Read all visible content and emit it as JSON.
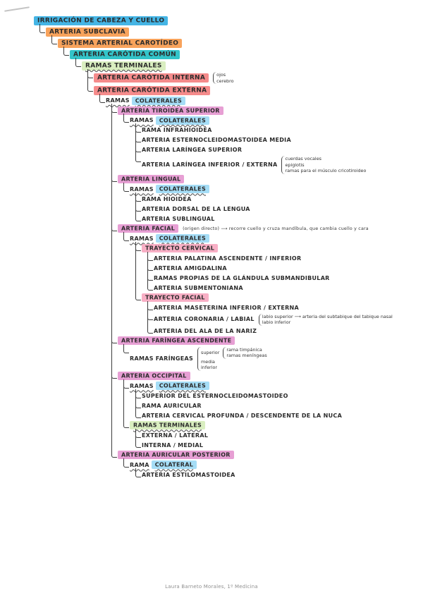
{
  "page": {
    "footer": "Laura Barneto Morales, 1º Medicina"
  },
  "palette": {
    "blue": "#45b5e5",
    "orange": "#f8a35c",
    "teal": "#33c4c9",
    "green": "#d9eec0",
    "red": "#f58b8b",
    "pink": "#e79fd4",
    "lightblue": "#a5ddf6",
    "lightpink": "#f8afc5"
  },
  "tree": {
    "label": "IRRIGACIÓN DE CABEZA Y CUELLO",
    "hl": "blue",
    "lg": true,
    "children": [
      {
        "label": "ARTERIA SUBCLAVIA",
        "hl": "orange",
        "lg": true,
        "children": [
          {
            "label": "SISTEMA ARTERIAL CAROTÍDEO",
            "hl": "orange",
            "lg": true,
            "children": [
              {
                "label": "ARTERIA CARÓTIDA COMÚN",
                "hl": "teal",
                "lg": true,
                "children": [
                  {
                    "label": "RAMAS TERMINALES",
                    "hl": "green",
                    "wavy": true,
                    "lg": true,
                    "children": [
                      {
                        "label": "ARTERIA CARÓTIDA INTERNA",
                        "hl": "red",
                        "lg": true,
                        "fork": [
                          {
                            "text": "ojos"
                          },
                          {
                            "text": "cerebro"
                          }
                        ]
                      },
                      {
                        "label": "ARTERIA CARÓTIDA EXTERNA",
                        "hl": "red",
                        "lg": true,
                        "children": [
                          {
                            "pre": "RAMAS",
                            "label": "COLATERALES",
                            "hl": "lightblue",
                            "wavy": true,
                            "children": [
                              {
                                "label": "ARTERIA TIROIDEA SUPERIOR",
                                "hl": "pink",
                                "children": [
                                  {
                                    "pre": "RAMAS",
                                    "label": "COLATERALES",
                                    "hl": "lightblue",
                                    "wavy": true,
                                    "children": [
                                      {
                                        "label": "RAMA INFRAHIOIDEA"
                                      },
                                      {
                                        "label": "ARTERIA ESTERNOCLEIDOMASTOIDEA MEDIA"
                                      },
                                      {
                                        "label": "ARTERIA LARÍNGEA SUPERIOR"
                                      },
                                      {
                                        "label": "ARTERIA LARÍNGEA INFERIOR / EXTERNA",
                                        "fork": [
                                          {
                                            "text": "cuerdas vocales"
                                          },
                                          {
                                            "text": "epiglotis"
                                          },
                                          {
                                            "text": "ramas para el músculo cricotiroideo"
                                          }
                                        ]
                                      }
                                    ]
                                  }
                                ]
                              },
                              {
                                "label": "ARTERIA LINGUAL",
                                "hl": "pink",
                                "children": [
                                  {
                                    "pre": "RAMAS",
                                    "label": "COLATERALES",
                                    "hl": "lightblue",
                                    "wavy": true,
                                    "children": [
                                      {
                                        "label": "RAMA HIOIDEA"
                                      },
                                      {
                                        "label": "ARTERIA DORSAL DE LA LENGUA"
                                      },
                                      {
                                        "label": "ARTERIA SUBLINGUAL"
                                      }
                                    ]
                                  }
                                ]
                              },
                              {
                                "label": "ARTERIA FACIAL",
                                "hl": "pink",
                                "note": "(origen directo)  ⟶  recorre cuello y cruza mandíbula, que cambia cuello y cara",
                                "children": [
                                  {
                                    "pre": "RAMAS",
                                    "label": "COLATERALES",
                                    "hl": "lightblue",
                                    "wavy": true,
                                    "children": [
                                      {
                                        "label": "TRAYECTO CERVICAL",
                                        "hl": "lightpink",
                                        "children": [
                                          {
                                            "label": "ARTERIA PALATINA ASCENDENTE / INFERIOR"
                                          },
                                          {
                                            "label": "ARTERIA AMIGDALINA"
                                          },
                                          {
                                            "label": "RAMAS PROPIAS DE LA GLÁNDULA SUBMANDIBULAR"
                                          },
                                          {
                                            "label": "ARTERIA SUBMENTONIANA"
                                          }
                                        ]
                                      },
                                      {
                                        "label": "TRAYECTO FACIAL",
                                        "hl": "lightpink",
                                        "children": [
                                          {
                                            "label": "ARTERIA MASETERINA INFERIOR / EXTERNA"
                                          },
                                          {
                                            "label": "ARTERIA CORONARIA / LABIAL",
                                            "fork": [
                                              {
                                                "text": "labio superior ⟶ arteria del subtabique del tabique nasal"
                                              },
                                              {
                                                "text": "labio inferior"
                                              }
                                            ]
                                          },
                                          {
                                            "label": "ARTERIA DEL ALA DE LA NARIZ"
                                          }
                                        ]
                                      }
                                    ]
                                  }
                                ]
                              },
                              {
                                "label": "ARTERIA FARÍNGEA ASCENDENTE",
                                "hl": "pink",
                                "children": [
                                  {
                                    "pre": "RAMAS",
                                    "label": "FARÍNGEAS",
                                    "fork": [
                                      {
                                        "text": "superior",
                                        "fork": [
                                          {
                                            "text": "rama timpánica"
                                          },
                                          {
                                            "text": "ramas meníngeas"
                                          }
                                        ]
                                      },
                                      {
                                        "text": "media"
                                      },
                                      {
                                        "text": "inferior"
                                      }
                                    ]
                                  }
                                ]
                              },
                              {
                                "label": "ARTERIA OCCIPITAL",
                                "hl": "pink",
                                "children": [
                                  {
                                    "pre": "RAMAS",
                                    "label": "COLATERALES",
                                    "hl": "lightblue",
                                    "wavy": true,
                                    "children": [
                                      {
                                        "label": "SUPERIOR DEL ESTERNOCLEIDOMASTOIDEO"
                                      },
                                      {
                                        "label": "RAMA AURICULAR"
                                      },
                                      {
                                        "label": "ARTERIA CERVICAL PROFUNDA / DESCENDENTE DE LA NUCA"
                                      }
                                    ]
                                  },
                                  {
                                    "label": "RAMAS TERMINALES",
                                    "hl": "green",
                                    "wavy": true,
                                    "children": [
                                      {
                                        "label": "EXTERNA / LATERAL"
                                      },
                                      {
                                        "label": "INTERNA / MEDIAL"
                                      }
                                    ]
                                  }
                                ]
                              },
                              {
                                "label": "ARTERIA AURICULAR POSTERIOR",
                                "hl": "pink",
                                "children": [
                                  {
                                    "pre": "RAMA",
                                    "label": "COLATERAL",
                                    "hl": "lightblue",
                                    "wavy": true,
                                    "children": [
                                      {
                                        "label": "ARTERIA ESTILOMASTOIDEA"
                                      }
                                    ]
                                  }
                                ]
                              }
                            ]
                          }
                        ]
                      }
                    ]
                  }
                ]
              }
            ]
          }
        ]
      }
    ]
  }
}
